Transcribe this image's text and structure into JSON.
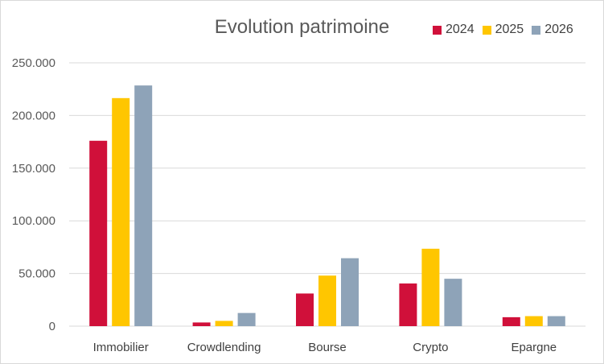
{
  "chart_data": {
    "type": "bar",
    "title": "Evolution patrimoine",
    "categories": [
      "Immobilier",
      "Crowdlending",
      "Bourse",
      "Crypto",
      "Epargne"
    ],
    "series": [
      {
        "name": "2024",
        "color": "#d0103a",
        "values": [
          176000,
          3500,
          31000,
          40500,
          8500
        ]
      },
      {
        "name": "2025",
        "color": "#ffc600",
        "values": [
          216500,
          5000,
          48000,
          73500,
          9500
        ]
      },
      {
        "name": "2026",
        "color": "#8ea3b8",
        "values": [
          228500,
          12500,
          64500,
          45000,
          9500
        ]
      }
    ],
    "ylim": [
      0,
      250000
    ],
    "yticks": [
      "0",
      "50.000",
      "100.000",
      "150.000",
      "200.000",
      "250.000"
    ],
    "ytick_values": [
      0,
      50000,
      100000,
      150000,
      200000,
      250000
    ],
    "grid": true,
    "legend_position": "top-right",
    "xlabel": "",
    "ylabel": ""
  }
}
